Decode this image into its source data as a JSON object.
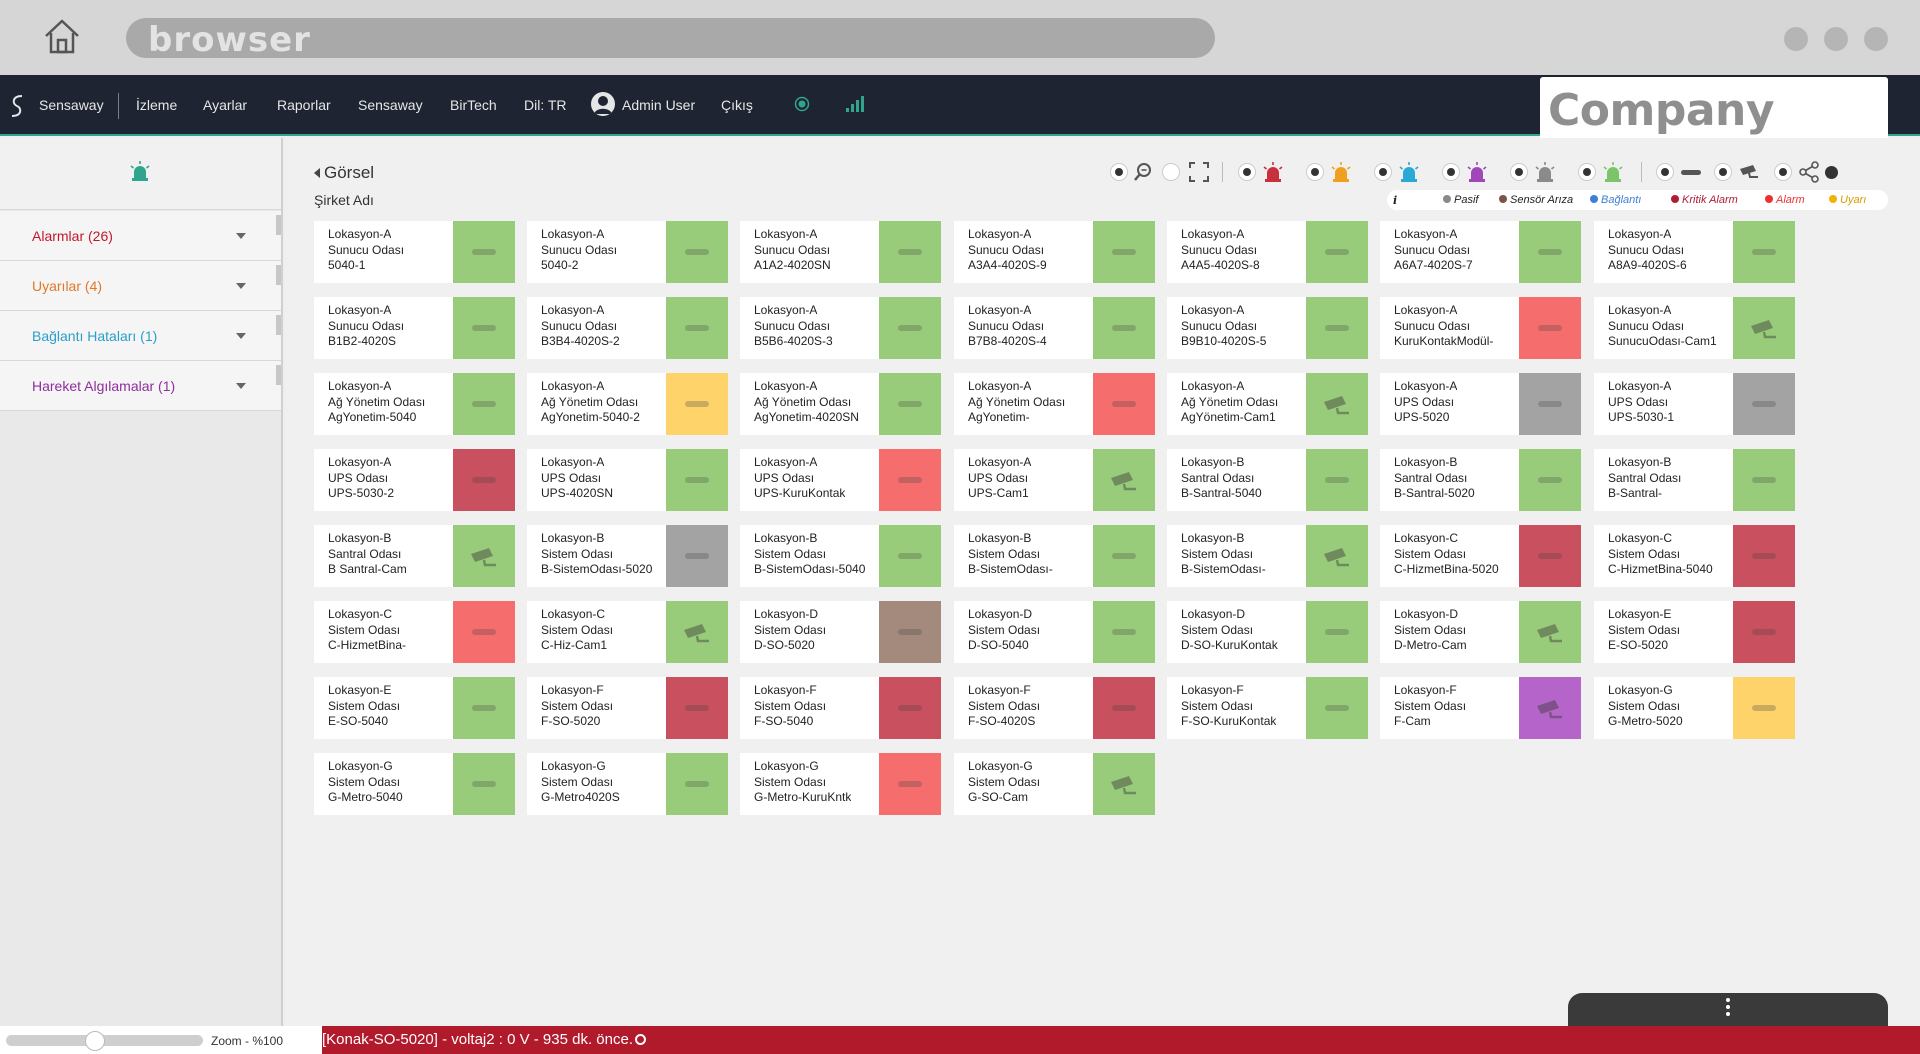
{
  "browser": {
    "address_text": "browser"
  },
  "nav": {
    "brand": "Sensaway",
    "items": [
      "İzleme",
      "Ayarlar",
      "Raporlar",
      "Sensaway",
      "BirTech",
      "Dil: TR"
    ],
    "user": "Admin User",
    "logout": "Çıkış",
    "logo_text": "Company Logo"
  },
  "sidebar": {
    "groups": [
      {
        "label": "Alarmlar (26)",
        "color": "#c0192a"
      },
      {
        "label": "Uyarılar (4)",
        "color": "#e0782a"
      },
      {
        "label": "Bağlantı Hataları (1)",
        "color": "#2a9fc9"
      },
      {
        "label": "Hareket Algılamalar (1)",
        "color": "#8e2f9e"
      }
    ]
  },
  "main": {
    "breadcrumb": "Görsel",
    "company": "Şirket Adı",
    "legend": [
      {
        "label": "Pasif",
        "color": "#8a8a8a"
      },
      {
        "label": "Sensör Arıza",
        "color": "#7a5548"
      },
      {
        "label": "Bağlantı",
        "color": "#3d7fd6"
      },
      {
        "label": "Kritik Alarm",
        "color": "#b01c36"
      },
      {
        "label": "Alarm",
        "color": "#f03030"
      },
      {
        "label": "Uyarı",
        "color": "#f0b400"
      }
    ]
  },
  "colors": {
    "ok": "#99cc7a",
    "critical": "#c9505e",
    "alarm": "#f56d6d",
    "warning": "#fdd36a",
    "passive": "#a3a3a3",
    "sensor_fault": "#a38a7c",
    "motion": "#b565c9"
  },
  "tiles": [
    {
      "l1": "Lokasyon-A",
      "l2": "Sunucu Odası",
      "l3": "5040-1",
      "status": "ok",
      "icon": "sensor"
    },
    {
      "l1": "Lokasyon-A",
      "l2": "Sunucu Odası",
      "l3": "5040-2",
      "status": "ok",
      "icon": "sensor"
    },
    {
      "l1": "Lokasyon-A",
      "l2": "Sunucu Odası",
      "l3": "A1A2-4020SN",
      "status": "ok",
      "icon": "sensor"
    },
    {
      "l1": "Lokasyon-A",
      "l2": "Sunucu Odası",
      "l3": "A3A4-4020S-9",
      "status": "ok",
      "icon": "sensor"
    },
    {
      "l1": "Lokasyon-A",
      "l2": "Sunucu Odası",
      "l3": "A4A5-4020S-8",
      "status": "ok",
      "icon": "sensor"
    },
    {
      "l1": "Lokasyon-A",
      "l2": "Sunucu Odası",
      "l3": "A6A7-4020S-7",
      "status": "ok",
      "icon": "sensor"
    },
    {
      "l1": "Lokasyon-A",
      "l2": "Sunucu Odası",
      "l3": "A8A9-4020S-6",
      "status": "ok",
      "icon": "sensor"
    },
    {
      "l1": "Lokasyon-A",
      "l2": "Sunucu Odası",
      "l3": "B1B2-4020S",
      "status": "ok",
      "icon": "sensor"
    },
    {
      "l1": "Lokasyon-A",
      "l2": "Sunucu Odası",
      "l3": "B3B4-4020S-2",
      "status": "ok",
      "icon": "sensor"
    },
    {
      "l1": "Lokasyon-A",
      "l2": "Sunucu Odası",
      "l3": "B5B6-4020S-3",
      "status": "ok",
      "icon": "sensor"
    },
    {
      "l1": "Lokasyon-A",
      "l2": "Sunucu Odası",
      "l3": "B7B8-4020S-4",
      "status": "ok",
      "icon": "sensor"
    },
    {
      "l1": "Lokasyon-A",
      "l2": "Sunucu Odası",
      "l3": "B9B10-4020S-5",
      "status": "ok",
      "icon": "sensor"
    },
    {
      "l1": "Lokasyon-A",
      "l2": "Sunucu Odası",
      "l3": "KuruKontakModül-",
      "status": "alarm",
      "icon": "sensor"
    },
    {
      "l1": "Lokasyon-A",
      "l2": "Sunucu Odası",
      "l3": "SunucuOdası-Cam1",
      "status": "ok",
      "icon": "camera"
    },
    {
      "l1": "Lokasyon-A",
      "l2": "Ağ Yönetim Odası",
      "l3": "AgYonetim-5040",
      "status": "ok",
      "icon": "sensor"
    },
    {
      "l1": "Lokasyon-A",
      "l2": "Ağ Yönetim Odası",
      "l3": "AgYonetim-5040-2",
      "status": "warning",
      "icon": "sensor"
    },
    {
      "l1": "Lokasyon-A",
      "l2": "Ağ Yönetim Odası",
      "l3": "AgYonetim-4020SN",
      "status": "ok",
      "icon": "sensor"
    },
    {
      "l1": "Lokasyon-A",
      "l2": "Ağ Yönetim Odası",
      "l3": "AgYonetim-",
      "status": "alarm",
      "icon": "sensor"
    },
    {
      "l1": "Lokasyon-A",
      "l2": "Ağ Yönetim Odası",
      "l3": "AgYönetim-Cam1",
      "status": "ok",
      "icon": "camera"
    },
    {
      "l1": "Lokasyon-A",
      "l2": "UPS Odası",
      "l3": "UPS-5020",
      "status": "passive",
      "icon": "sensor"
    },
    {
      "l1": "Lokasyon-A",
      "l2": "UPS Odası",
      "l3": "UPS-5030-1",
      "status": "passive",
      "icon": "sensor"
    },
    {
      "l1": "Lokasyon-A",
      "l2": "UPS Odası",
      "l3": "UPS-5030-2",
      "status": "critical",
      "icon": "sensor"
    },
    {
      "l1": "Lokasyon-A",
      "l2": "UPS Odası",
      "l3": "UPS-4020SN",
      "status": "ok",
      "icon": "sensor"
    },
    {
      "l1": "Lokasyon-A",
      "l2": "UPS Odası",
      "l3": "UPS-KuruKontak",
      "status": "alarm",
      "icon": "sensor"
    },
    {
      "l1": "Lokasyon-A",
      "l2": "UPS Odası",
      "l3": "UPS-Cam1",
      "status": "ok",
      "icon": "camera"
    },
    {
      "l1": "Lokasyon-B",
      "l2": "Santral Odası",
      "l3": "B-Santral-5040",
      "status": "ok",
      "icon": "sensor"
    },
    {
      "l1": "Lokasyon-B",
      "l2": "Santral Odası",
      "l3": "B-Santral-5020",
      "status": "ok",
      "icon": "sensor"
    },
    {
      "l1": "Lokasyon-B",
      "l2": "Santral Odası",
      "l3": "B-Santral-",
      "status": "ok",
      "icon": "sensor"
    },
    {
      "l1": "Lokasyon-B",
      "l2": "Santral Odası",
      "l3": "B Santral-Cam",
      "status": "ok",
      "icon": "camera"
    },
    {
      "l1": "Lokasyon-B",
      "l2": "Sistem Odası",
      "l3": "B-SistemOdası-5020",
      "status": "passive",
      "icon": "sensor"
    },
    {
      "l1": "Lokasyon-B",
      "l2": "Sistem Odası",
      "l3": "B-SistemOdası-5040",
      "status": "ok",
      "icon": "sensor"
    },
    {
      "l1": "Lokasyon-B",
      "l2": "Sistem Odası",
      "l3": "B-SistemOdası-",
      "status": "ok",
      "icon": "sensor"
    },
    {
      "l1": "Lokasyon-B",
      "l2": "Sistem Odası",
      "l3": "B-SistemOdası-",
      "status": "ok",
      "icon": "camera"
    },
    {
      "l1": "Lokasyon-C",
      "l2": "Sistem Odası",
      "l3": "C-HizmetBina-5020",
      "status": "critical",
      "icon": "sensor"
    },
    {
      "l1": "Lokasyon-C",
      "l2": "Sistem Odası",
      "l3": "C-HizmetBina-5040",
      "status": "critical",
      "icon": "sensor"
    },
    {
      "l1": "Lokasyon-C",
      "l2": "Sistem Odası",
      "l3": "C-HizmetBina-",
      "status": "alarm",
      "icon": "sensor"
    },
    {
      "l1": "Lokasyon-C",
      "l2": "Sistem Odası",
      "l3": "C-Hiz-Cam1",
      "status": "ok",
      "icon": "camera"
    },
    {
      "l1": "Lokasyon-D",
      "l2": "Sistem Odası",
      "l3": "D-SO-5020",
      "status": "sensor_fault",
      "icon": "sensor"
    },
    {
      "l1": "Lokasyon-D",
      "l2": "Sistem Odası",
      "l3": "D-SO-5040",
      "status": "ok",
      "icon": "sensor"
    },
    {
      "l1": "Lokasyon-D",
      "l2": "Sistem Odası",
      "l3": "D-SO-KuruKontak",
      "status": "ok",
      "icon": "sensor"
    },
    {
      "l1": "Lokasyon-D",
      "l2": "Sistem Odası",
      "l3": "D-Metro-Cam",
      "status": "ok",
      "icon": "camera"
    },
    {
      "l1": "Lokasyon-E",
      "l2": "Sistem Odası",
      "l3": "E-SO-5020",
      "status": "critical",
      "icon": "sensor"
    },
    {
      "l1": "Lokasyon-E",
      "l2": "Sistem Odası",
      "l3": "E-SO-5040",
      "status": "ok",
      "icon": "sensor"
    },
    {
      "l1": "Lokasyon-F",
      "l2": "Sistem Odası",
      "l3": "F-SO-5020",
      "status": "critical",
      "icon": "sensor"
    },
    {
      "l1": "Lokasyon-F",
      "l2": "Sistem Odası",
      "l3": "F-SO-5040",
      "status": "critical",
      "icon": "sensor"
    },
    {
      "l1": "Lokasyon-F",
      "l2": "Sistem Odası",
      "l3": "F-SO-4020S",
      "status": "critical",
      "icon": "sensor"
    },
    {
      "l1": "Lokasyon-F",
      "l2": "Sistem Odası",
      "l3": "F-SO-KuruKontak",
      "status": "ok",
      "icon": "sensor"
    },
    {
      "l1": "Lokasyon-F",
      "l2": "Sistem Odası",
      "l3": "F-Cam",
      "status": "motion",
      "icon": "camera"
    },
    {
      "l1": "Lokasyon-G",
      "l2": "Sistem Odası",
      "l3": "G-Metro-5020",
      "status": "warning",
      "icon": "sensor"
    },
    {
      "l1": "Lokasyon-G",
      "l2": "Sistem Odası",
      "l3": "G-Metro-5040",
      "status": "ok",
      "icon": "sensor"
    },
    {
      "l1": "Lokasyon-G",
      "l2": "Sistem Odası",
      "l3": "G-Metro4020S",
      "status": "ok",
      "icon": "sensor"
    },
    {
      "l1": "Lokasyon-G",
      "l2": "Sistem Odası",
      "l3": "G-Metro-KuruKntk",
      "status": "alarm",
      "icon": "sensor"
    },
    {
      "l1": "Lokasyon-G",
      "l2": "Sistem Odası",
      "l3": "G-SO-Cam",
      "status": "ok",
      "icon": "camera"
    }
  ],
  "bottom": {
    "zoom_label": "Zoom - %100",
    "zoom_level": 0.45,
    "status_message": "[Konak-SO-5020] - voltaj2 : 0 V - 935 dk. önce."
  }
}
